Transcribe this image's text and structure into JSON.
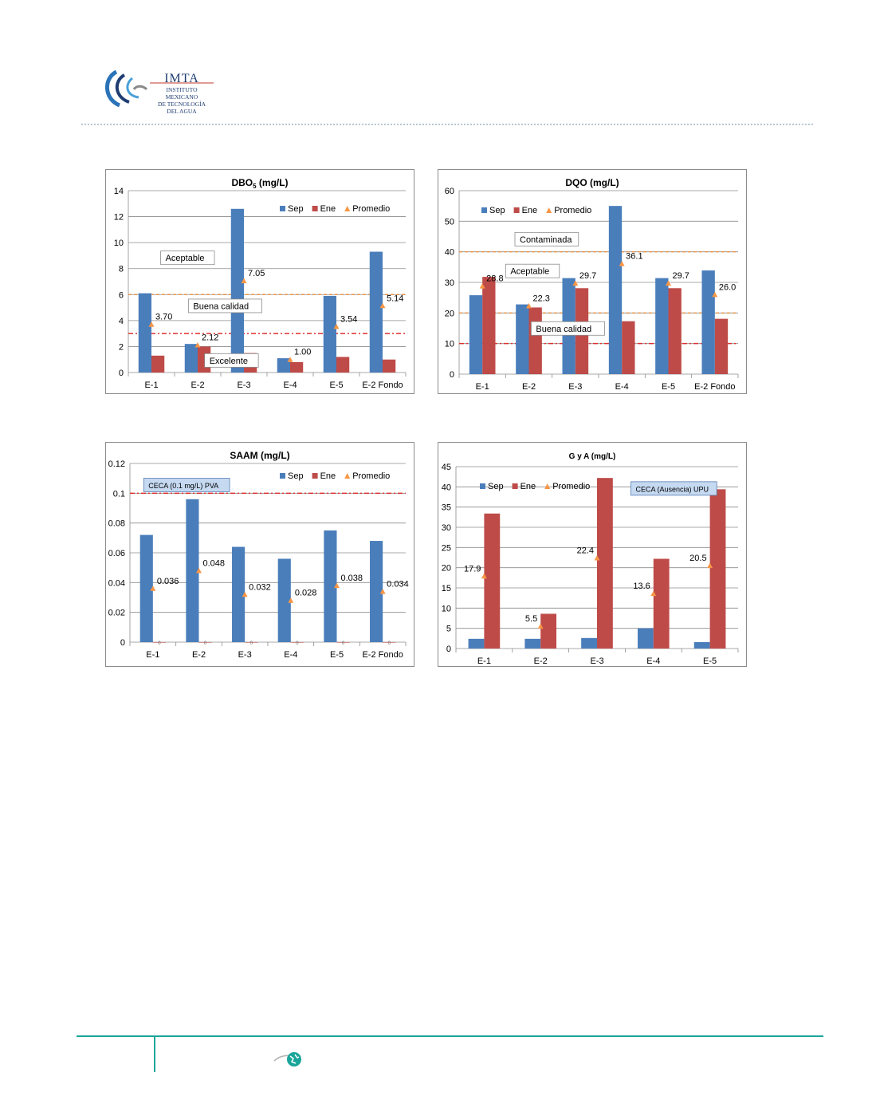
{
  "header": {
    "logo_name": "IMTA",
    "logo_lines": [
      "INSTITUTO MEXICANO",
      "DE TECNOLOGÍA",
      "DEL AGUA"
    ]
  },
  "colors": {
    "sep": "#4a7ebb",
    "ene": "#be4b48",
    "promedio": "#f79646",
    "orange_line": "#e9964a",
    "red_line": "#e03030",
    "teal": "#1aa59a"
  },
  "chart_data": [
    {
      "type": "bar",
      "title": "DBO",
      "title_sub": "5",
      "title_unit": "(mg/L)",
      "categories": [
        "E-1",
        "E-2",
        "E-3",
        "E-4",
        "E-5",
        "E-2 Fondo"
      ],
      "series": [
        {
          "name": "Sep",
          "values": [
            6.1,
            2.2,
            12.6,
            1.1,
            5.9,
            9.3
          ]
        },
        {
          "name": "Ene",
          "values": [
            1.3,
            2.0,
            1.5,
            0.8,
            1.2,
            1.0
          ]
        }
      ],
      "promedio": {
        "name": "Promedio",
        "values": [
          3.7,
          2.12,
          7.05,
          1.0,
          3.54,
          5.14
        ],
        "labels": [
          "3.70",
          "2.12",
          "7.05",
          "1.00",
          "3.54",
          "5.14"
        ]
      },
      "ylim": [
        0,
        14
      ],
      "yticks": [
        0,
        2,
        4,
        6,
        8,
        10,
        12,
        14
      ],
      "ytick_labels": [
        "0",
        "2",
        "4",
        "6",
        "8",
        "10",
        "12",
        "14"
      ],
      "hlines": [
        {
          "y": 6,
          "color": "orange"
        },
        {
          "y": 3,
          "color": "red"
        }
      ],
      "annotations": [
        {
          "text": "Aceptable",
          "x": 0.7,
          "y": 8.8
        },
        {
          "text": "Buena calidad",
          "x": 1.3,
          "y": 5.1
        },
        {
          "text": "Excelente",
          "x": 1.65,
          "y": 0.9
        }
      ],
      "legend": "top-right",
      "grid": true
    },
    {
      "type": "bar",
      "title": "DQO",
      "title_sub": "",
      "title_unit": "(mg/L)",
      "categories": [
        "E-1",
        "E-2",
        "E-3",
        "E-4",
        "E-5",
        "E-2 Fondo"
      ],
      "series": [
        {
          "name": "Sep",
          "values": [
            25.8,
            22.8,
            31.4,
            55.0,
            31.4,
            33.9
          ]
        },
        {
          "name": "Ene",
          "values": [
            31.8,
            21.8,
            28.1,
            17.3,
            28.1,
            18.1
          ]
        }
      ],
      "promedio": {
        "name": "Promedio",
        "values": [
          28.8,
          22.3,
          29.7,
          36.1,
          29.7,
          26.0
        ],
        "labels": [
          "28.8",
          "22.3",
          "29.7",
          "36.1",
          "29.7",
          "26.0"
        ]
      },
      "ylim": [
        0,
        60
      ],
      "yticks": [
        0,
        10,
        20,
        30,
        40,
        50,
        60
      ],
      "ytick_labels": [
        "0",
        "10",
        "20",
        "30",
        "40",
        "50",
        "60"
      ],
      "hlines": [
        {
          "y": 40,
          "color": "orange"
        },
        {
          "y": 20,
          "color": "orange"
        },
        {
          "y": 10,
          "color": "red"
        }
      ],
      "annotations": [
        {
          "text": "Contaminada",
          "x": 1.2,
          "y": 44
        },
        {
          "text": "Aceptable",
          "x": 1.0,
          "y": 33.6
        },
        {
          "text": "Buena calidad",
          "x": 1.55,
          "y": 14.8
        }
      ],
      "legend": "top-left",
      "grid": true
    },
    {
      "type": "bar",
      "title": "SAAM",
      "title_sub": "",
      "title_unit": "(mg/L)",
      "categories": [
        "E-1",
        "E-2",
        "E-3",
        "E-4",
        "E-5",
        "E-2 Fondo"
      ],
      "series": [
        {
          "name": "Sep",
          "values": [
            0.072,
            0.096,
            0.064,
            0.056,
            0.075,
            0.068
          ]
        },
        {
          "name": "Ene",
          "values": [
            0,
            0,
            0,
            0,
            0,
            0
          ],
          "labels": [
            "0",
            "0",
            "0",
            "0",
            "0",
            "0"
          ]
        }
      ],
      "promedio": {
        "name": "Promedio",
        "values": [
          0.036,
          0.048,
          0.032,
          0.028,
          0.038,
          0.034
        ],
        "labels": [
          "0.036",
          "0.048",
          "0.032",
          "0.028",
          "0.038",
          "0.034"
        ]
      },
      "ylim": [
        0,
        0.12
      ],
      "yticks": [
        0,
        0.02,
        0.04,
        0.06,
        0.08,
        0.1,
        0.12
      ],
      "ytick_labels": [
        "0",
        "0.02",
        "0.04",
        "0.06",
        "0.08",
        "0.1",
        "0.12"
      ],
      "hlines": [
        {
          "y": 0.1,
          "color": "red"
        }
      ],
      "annotations": [
        {
          "text": "CECA (0.1 mg/L) PVA",
          "x": 0.3,
          "y": 0.1053,
          "filled": true
        }
      ],
      "legend": "top-right",
      "grid": true
    },
    {
      "type": "bar",
      "title": "G y A",
      "title_sub": "",
      "title_unit": "(mg/L)",
      "categories": [
        "E-1",
        "E-2",
        "E-3",
        "E-4",
        "E-5"
      ],
      "series": [
        {
          "name": "Sep",
          "values": [
            2.4,
            2.4,
            2.6,
            5.0,
            1.6
          ]
        },
        {
          "name": "Ene",
          "values": [
            33.4,
            8.6,
            42.2,
            22.2,
            39.4
          ]
        }
      ],
      "promedio": {
        "name": "Promedio",
        "values": [
          17.9,
          5.5,
          22.4,
          13.6,
          20.5
        ],
        "labels": [
          "17.9",
          "5.5",
          "22.4",
          "13.6",
          "20.5"
        ]
      },
      "ylim": [
        0,
        45
      ],
      "yticks": [
        0,
        5,
        10,
        15,
        20,
        25,
        30,
        35,
        40,
        45
      ],
      "ytick_labels": [
        "0",
        "5",
        "10",
        "15",
        "20",
        "25",
        "30",
        "35",
        "40",
        "45"
      ],
      "hlines": [],
      "annotations": [
        {
          "text": "CECA (Ausencia) UPU",
          "x": 3.1,
          "y": 39.5,
          "filled": true
        }
      ],
      "legend": "top-left",
      "grid": true
    }
  ]
}
